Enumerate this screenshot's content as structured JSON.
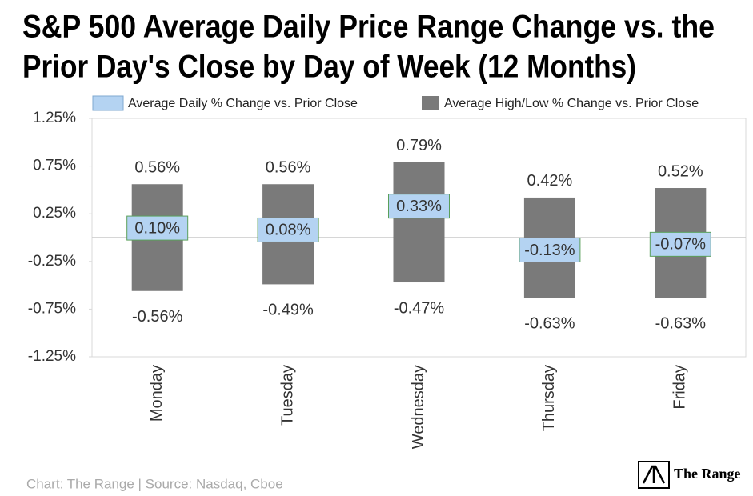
{
  "chart_data": {
    "type": "range_bar",
    "title": [
      "S&P 500 Average Daily Price Range Change vs. the",
      "Prior Day's Close by Day of Week (12 Months)"
    ],
    "categories": [
      "Monday",
      "Tuesday",
      "Wednesday",
      "Thursday",
      "Friday"
    ],
    "series": [
      {
        "name": "Average Daily % Change vs. Prior Close",
        "color": "#b4d3f2",
        "values": [
          0.1,
          0.08,
          0.33,
          -0.13,
          -0.07
        ],
        "value_labels": [
          "0.10%",
          "0.08%",
          "0.33%",
          "-0.13%",
          "-0.07%"
        ]
      },
      {
        "name": "Average High/Low % Change vs. Prior Close",
        "color": "#7a7a7a",
        "high": [
          0.56,
          0.56,
          0.79,
          0.42,
          0.52
        ],
        "high_labels": [
          "0.56%",
          "0.56%",
          "0.79%",
          "0.42%",
          "0.52%"
        ],
        "low": [
          -0.56,
          -0.49,
          -0.47,
          -0.63,
          -0.63
        ],
        "low_labels": [
          "-0.56%",
          "-0.49%",
          "-0.47%",
          "-0.63%",
          "-0.63%"
        ]
      }
    ],
    "ylim": [
      -1.25,
      1.25
    ],
    "yticks": [
      {
        "value": -1.25,
        "label": "-1.25%"
      },
      {
        "value": -0.75,
        "label": "-0.75%"
      },
      {
        "value": -0.25,
        "label": "-0.25%"
      },
      {
        "value": 0.25,
        "label": "0.25%"
      },
      {
        "value": 0.75,
        "label": "0.75%"
      },
      {
        "value": 1.25,
        "label": "1.25%"
      }
    ],
    "source": "Chart: The Range | Source: Nasdaq, Cboe",
    "logo": "The Range"
  }
}
